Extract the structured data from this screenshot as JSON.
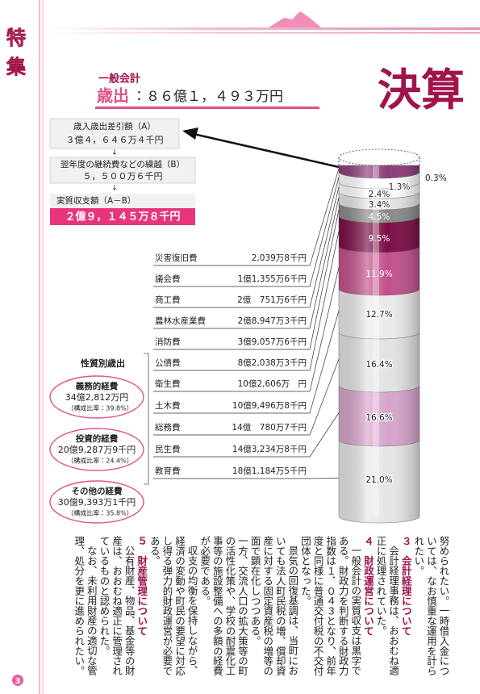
{
  "section_label": [
    "特",
    "集"
  ],
  "page_number": "3",
  "header": {
    "category": "一般会計",
    "label": "歳出",
    "amount": "：８６億１，４９３万円",
    "title": "決算"
  },
  "balance": {
    "diff_label": "歳入歳出差引額（A）",
    "diff_value": "３億４，６４６万４千円",
    "carry_label": "翌年度の継続費などの繰越（B）",
    "carry_value": "５，５００万６千円",
    "real_label": "実質収支額（A－B）",
    "real_value": "２億９，１４５万８千円"
  },
  "expenditures": [
    {
      "name": "災害復旧費",
      "amount": "2,039万8千円"
    },
    {
      "name": "議会費",
      "amount": "1億1,355万6千円"
    },
    {
      "name": "商工費",
      "amount": "2億　751万6千円"
    },
    {
      "name": "農林水産業費",
      "amount": "2億8,947万3千円"
    },
    {
      "name": "消防費",
      "amount": "3億9,057万6千円"
    },
    {
      "name": "公債費",
      "amount": "8億2,038万3千円"
    },
    {
      "name": "衛生費",
      "amount": "10億2,606万　円"
    },
    {
      "name": "土木費",
      "amount": "10億9,496万8千円"
    },
    {
      "name": "総務費",
      "amount": "14億　780万7千円"
    },
    {
      "name": "民生費",
      "amount": "14億3,234万8千円"
    },
    {
      "name": "教育費",
      "amount": "18億1,184万5千円"
    }
  ],
  "shares": [
    "0.3%",
    "1.3%",
    "2.4%",
    "3.4%",
    "4.5%",
    "9.5%",
    "11.9%",
    "12.7%",
    "16.4%",
    "16.6%",
    "21.0%"
  ],
  "by_nature": {
    "title": "性質別歳出",
    "items": [
      {
        "name": "義務的経費",
        "amount": "34億2,812万円",
        "ratio": "（構成比率：39.8%）"
      },
      {
        "name": "投資的経費",
        "amount": "20億9,287万9千円",
        "ratio": "（構成比率：24.4%）"
      },
      {
        "name": "その他の経費",
        "amount": "30億9,393万1千円",
        "ratio": "（構成比率：35.8%）"
      }
    ]
  },
  "body": [
    {
      "kind": "cont",
      "text": "努められたい。一時借入金については、なお慎重な運用を計られたい。"
    },
    {
      "kind": "head",
      "text": "３　会計経理について"
    },
    {
      "kind": "para",
      "text": "会計経理事務は、おおむね適正に処理されていた。"
    },
    {
      "kind": "head",
      "text": "４　財政運営について"
    },
    {
      "kind": "para",
      "text": "一般会計の実質収支は黒字である。財政力を判断する財政力指数は１．０４３となり、前年度と同様に普通交付税の不交付団体となった。"
    },
    {
      "kind": "para",
      "text": "景気の回復基調は、当町においても法人町民税の増、償却資産に対する固定資産税の増等の面で顕在化しつつある。"
    },
    {
      "kind": "cont",
      "text": "一方、交流人口の拡大策等の町の活性化策や、学校の耐震化工事等の施設整備への多額の経費が必要である。"
    },
    {
      "kind": "para",
      "text": "収支の均衡を保持しながら、経済の変動や町民の要望に対応し得る弾力的財政運営が必要である。"
    },
    {
      "kind": "head",
      "text": "５　財産管理について"
    },
    {
      "kind": "para",
      "text": "公有財産、物品、基金等の財産は、おおむね適正に管理されているものと認められた。"
    },
    {
      "kind": "para",
      "text": "なお、未利用財産の適切な管理、処分を更に進められたい。"
    }
  ]
}
